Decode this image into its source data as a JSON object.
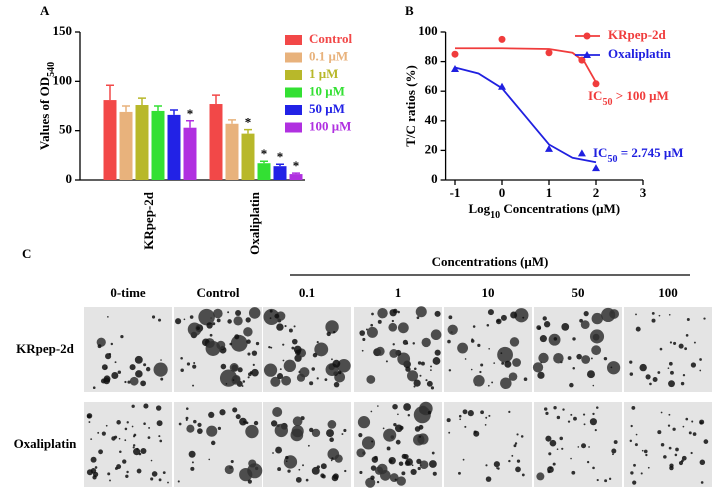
{
  "chart_data": [
    {
      "type": "bar",
      "panel": "A",
      "ylabel": [
        "Values of OD",
        "540"
      ],
      "categories": [
        "KRpep-2d",
        "Oxaliplatin"
      ],
      "ylim": [
        0,
        150
      ],
      "yticks": [
        0,
        50,
        100,
        150
      ],
      "series": [
        {
          "name": "Control",
          "color": "#f24848",
          "values": [
            81,
            77
          ],
          "errors": [
            15,
            9
          ],
          "significance": [
            null,
            null
          ]
        },
        {
          "name": "0.1 μM",
          "color": "#e8b27c",
          "values": [
            69,
            57
          ],
          "errors": [
            6,
            4
          ],
          "significance": [
            null,
            null
          ]
        },
        {
          "name": "1 μM",
          "color": "#b8b82a",
          "values": [
            76,
            47
          ],
          "errors": [
            7,
            4
          ],
          "significance": [
            null,
            "*"
          ]
        },
        {
          "name": "10 μM",
          "color": "#33e033",
          "values": [
            70,
            17
          ],
          "errors": [
            5,
            2
          ],
          "significance": [
            null,
            "*"
          ]
        },
        {
          "name": "50 μM",
          "color": "#2222e6",
          "values": [
            66,
            14
          ],
          "errors": [
            5,
            2
          ],
          "significance": [
            null,
            "*"
          ]
        },
        {
          "name": "100 μM",
          "color": "#b030e0",
          "values": [
            53,
            6
          ],
          "errors": [
            7,
            1
          ],
          "significance": [
            "*",
            "*"
          ]
        }
      ]
    },
    {
      "type": "scatter",
      "panel": "B",
      "ylabel": "T/C ratios (%)",
      "xlabel": [
        "Log",
        "10",
        " Concentrations (μM)"
      ],
      "xlim": [
        -1.2,
        3
      ],
      "xticks": [
        -1,
        0,
        1,
        2,
        3
      ],
      "ylim": [
        0,
        100
      ],
      "yticks": [
        0,
        20,
        40,
        60,
        80,
        100
      ],
      "series": [
        {
          "name": "KRpep-2d",
          "color": "#f03c3c",
          "marker": "circle",
          "x": [
            -1,
            0,
            1,
            1.7,
            2
          ],
          "values": [
            85,
            95,
            86,
            81,
            65
          ],
          "fit_x": [
            -1,
            0,
            1,
            1.5,
            1.75,
            2
          ],
          "fit": [
            89,
            89,
            88.5,
            86,
            80,
            66
          ],
          "ic": [
            "IC",
            "50",
            " > 100 μM"
          ]
        },
        {
          "name": "Oxaliplatin",
          "color": "#2020e0",
          "marker": "triangle",
          "x": [
            -1,
            0,
            1,
            1.7,
            2
          ],
          "values": [
            75,
            63,
            21,
            18,
            8
          ],
          "fit_x": [
            -1,
            -0.5,
            0,
            0.5,
            1,
            1.5,
            2
          ],
          "fit": [
            76,
            72,
            62,
            43,
            24,
            15,
            12
          ],
          "ic": [
            "IC",
            "50",
            " = 2.745 μM"
          ]
        }
      ]
    }
  ],
  "panel_c": {
    "label": "C",
    "header": "Concentrations (μM)",
    "columns": [
      "0-time",
      "Control",
      "0.1",
      "1",
      "10",
      "50",
      "100"
    ],
    "rows": [
      "KRpep-2d",
      "Oxaliplatin"
    ]
  }
}
